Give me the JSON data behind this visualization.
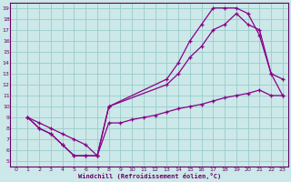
{
  "title": "",
  "xlabel": "Windchill (Refroidissement éolien,°C)",
  "bg_color": "#cce8e8",
  "line_color": "#880088",
  "grid_color": "#99cccc",
  "axis_color": "#660066",
  "text_color": "#660066",
  "xlim": [
    -0.5,
    23.5
  ],
  "ylim": [
    4.5,
    19.5
  ],
  "xticks": [
    0,
    1,
    2,
    3,
    4,
    5,
    6,
    7,
    8,
    9,
    10,
    11,
    12,
    13,
    14,
    15,
    16,
    17,
    18,
    19,
    20,
    21,
    22,
    23
  ],
  "yticks": [
    5,
    6,
    7,
    8,
    9,
    10,
    11,
    12,
    13,
    14,
    15,
    16,
    17,
    18,
    19
  ],
  "line1_x": [
    1,
    2,
    3,
    4,
    5,
    6,
    7,
    8,
    13,
    14,
    15,
    16,
    17,
    18,
    19,
    20,
    21,
    22,
    23
  ],
  "line1_y": [
    9,
    8,
    7.5,
    6.5,
    5.5,
    5.5,
    5.5,
    10,
    12.5,
    14,
    16,
    17.5,
    19,
    19,
    19,
    18.5,
    16.5,
    13,
    11
  ],
  "line2_x": [
    1,
    2,
    3,
    4,
    5,
    6,
    7,
    8,
    13,
    14,
    15,
    16,
    17,
    18,
    19,
    20,
    21,
    22,
    23
  ],
  "line2_y": [
    9,
    8,
    7.5,
    6.5,
    5.5,
    5.5,
    5.5,
    10,
    12,
    13,
    14.5,
    15.5,
    17,
    17.5,
    18.5,
    17.5,
    17,
    13,
    12.5
  ],
  "line3_x": [
    1,
    2,
    3,
    4,
    5,
    6,
    7,
    8,
    9,
    10,
    11,
    12,
    13,
    14,
    15,
    16,
    17,
    18,
    19,
    20,
    21,
    22,
    23
  ],
  "line3_y": [
    9,
    8.5,
    8,
    7.5,
    7,
    6.5,
    5.5,
    8.5,
    8.5,
    8.8,
    9,
    9.2,
    9.5,
    9.8,
    10,
    10.2,
    10.5,
    10.8,
    11,
    11.2,
    11.5,
    11,
    11
  ]
}
